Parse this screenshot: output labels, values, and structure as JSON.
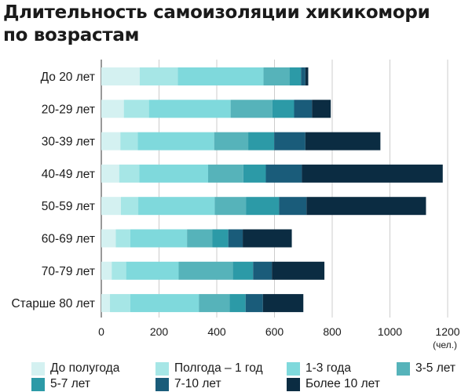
{
  "title": "Длительность самоизоляции хикикомори по возрастам",
  "unit_label": "(чел.)",
  "chart_data": {
    "type": "bar",
    "orientation": "horizontal",
    "stacked": true,
    "categories": [
      "До 20 лет",
      "20-29 лет",
      "30-39 лет",
      "40-49 лет",
      "50-59 лет",
      "60-69 лет",
      "70-79 лет",
      "Старше 80 лет"
    ],
    "xlim": [
      0,
      1200
    ],
    "xticks": [
      0,
      200,
      400,
      600,
      800,
      1000,
      1200
    ],
    "grid": true,
    "legend_position": "bottom",
    "series": [
      {
        "name": "До полугода",
        "color": "#d4f1f1",
        "values": [
          133,
          78,
          66,
          62,
          68,
          50,
          36,
          30
        ]
      },
      {
        "name": "Полгода – 1 год",
        "color": "#a6e6e6",
        "values": [
          132,
          87,
          60,
          70,
          60,
          50,
          50,
          70
        ]
      },
      {
        "name": "1-3 года",
        "color": "#7fd9dc",
        "values": [
          297,
          283,
          265,
          238,
          265,
          197,
          182,
          238
        ]
      },
      {
        "name": "3-5 лет",
        "color": "#56b3ba",
        "values": [
          90,
          145,
          118,
          122,
          108,
          88,
          188,
          107
        ]
      },
      {
        "name": "5-7 лет",
        "color": "#2c9aa7",
        "values": [
          40,
          75,
          90,
          78,
          115,
          55,
          70,
          55
        ]
      },
      {
        "name": "7-10 лет",
        "color": "#1a5c7a",
        "values": [
          15,
          62,
          108,
          125,
          95,
          50,
          65,
          60
        ]
      },
      {
        "name": "Более 10 лет",
        "color": "#0b2c42",
        "values": [
          10,
          65,
          260,
          488,
          414,
          170,
          182,
          140
        ]
      }
    ]
  }
}
